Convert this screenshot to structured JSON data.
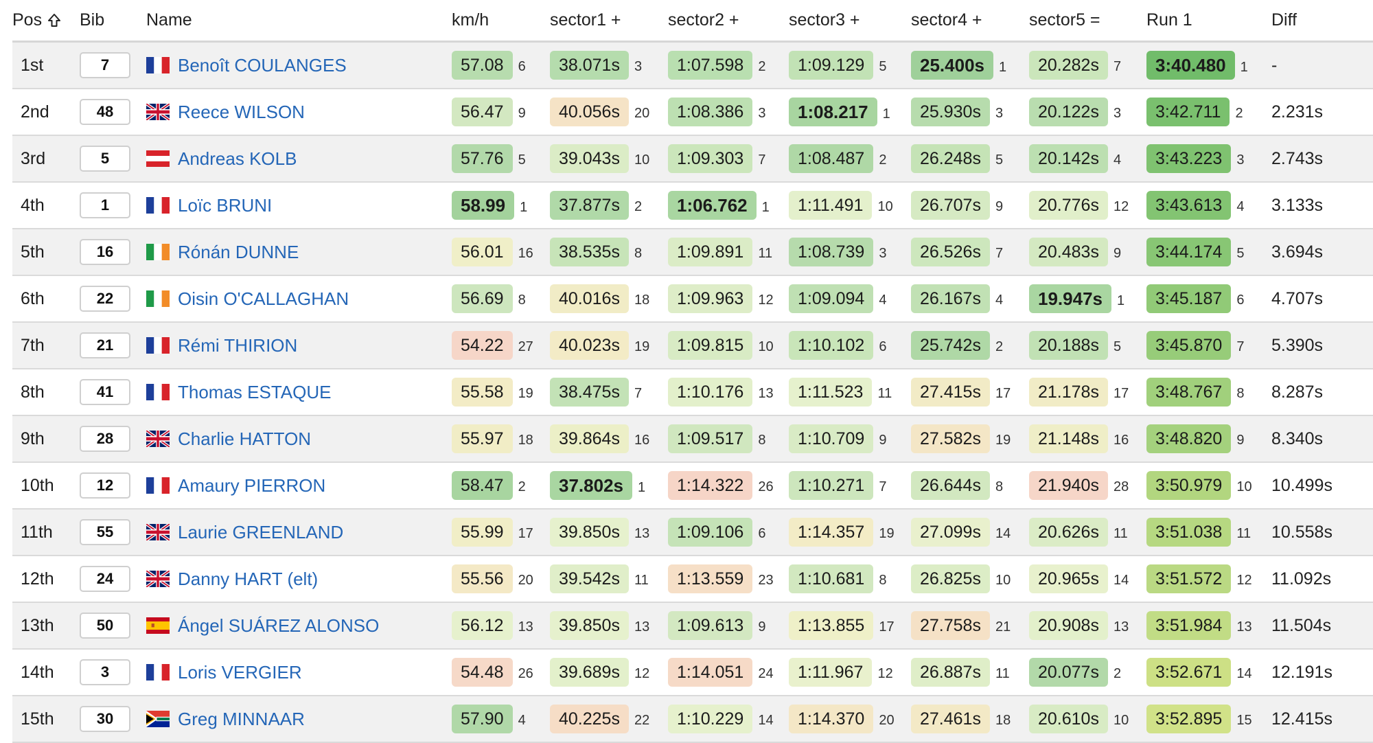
{
  "columns": {
    "pos": "Pos",
    "bib": "Bib",
    "name": "Name",
    "kmh": "km/h",
    "sector1": "sector1 +",
    "sector2": "sector2 +",
    "sector3": "sector3 +",
    "sector4": "sector4 +",
    "sector5": "sector5 =",
    "run1": "Run 1",
    "diff": "Diff"
  },
  "rows": [
    {
      "pos": "1st",
      "bib": "7",
      "flag": "fr",
      "name": "Benoît COULANGES",
      "kmh": {
        "v": "57.08",
        "r": "6",
        "c": "#b7dcae"
      },
      "s1": {
        "v": "38.071s",
        "r": "3",
        "c": "#b5dcad"
      },
      "s2": {
        "v": "1:07.598",
        "r": "2",
        "c": "#b9dfb0"
      },
      "s3": {
        "v": "1:09.129",
        "r": "5",
        "c": "#c2e2b5"
      },
      "s4": {
        "v": "25.400s",
        "r": "1",
        "c": "#9fd09a",
        "best": true
      },
      "s5": {
        "v": "20.282s",
        "r": "7",
        "c": "#cbe6bb"
      },
      "run": {
        "v": "3:40.480",
        "r": "1",
        "c": "#71bc6a",
        "best": true
      },
      "diff": "-"
    },
    {
      "pos": "2nd",
      "bib": "48",
      "flag": "gb",
      "name": "Reece WILSON",
      "kmh": {
        "v": "56.47",
        "r": "9",
        "c": "#d3e8c1"
      },
      "s1": {
        "v": "40.056s",
        "r": "20",
        "c": "#f5e3c6"
      },
      "s2": {
        "v": "1:08.386",
        "r": "3",
        "c": "#bde0b2"
      },
      "s3": {
        "v": "1:08.217",
        "r": "1",
        "c": "#a8d5a0",
        "best": true
      },
      "s4": {
        "v": "25.930s",
        "r": "3",
        "c": "#b7dcad"
      },
      "s5": {
        "v": "20.122s",
        "r": "3",
        "c": "#b9ddaf"
      },
      "run": {
        "v": "3:42.711",
        "r": "2",
        "c": "#7ac06e"
      },
      "diff": "2.231s"
    },
    {
      "pos": "3rd",
      "bib": "5",
      "flag": "at",
      "name": "Andreas KOLB",
      "kmh": {
        "v": "57.76",
        "r": "5",
        "c": "#b2d9aa"
      },
      "s1": {
        "v": "39.043s",
        "r": "10",
        "c": "#dbecc6"
      },
      "s2": {
        "v": "1:09.303",
        "r": "7",
        "c": "#cbe6bb"
      },
      "s3": {
        "v": "1:08.487",
        "r": "2",
        "c": "#afd8a6"
      },
      "s4": {
        "v": "26.248s",
        "r": "5",
        "c": "#c5e3b6"
      },
      "s5": {
        "v": "20.142s",
        "r": "4",
        "c": "#bcdfb1"
      },
      "run": {
        "v": "3:43.223",
        "r": "3",
        "c": "#7fc270"
      },
      "diff": "2.743s"
    },
    {
      "pos": "4th",
      "bib": "1",
      "flag": "fr",
      "name": "Loïc BRUNI",
      "kmh": {
        "v": "58.99",
        "r": "1",
        "c": "#a3d29c",
        "best": true
      },
      "s1": {
        "v": "37.877s",
        "r": "2",
        "c": "#b0d9a8"
      },
      "s2": {
        "v": "1:06.762",
        "r": "1",
        "c": "#a9d6a1",
        "best": true
      },
      "s3": {
        "v": "1:11.491",
        "r": "10",
        "c": "#e4f0cc"
      },
      "s4": {
        "v": "26.707s",
        "r": "9",
        "c": "#d6eac3"
      },
      "s5": {
        "v": "20.776s",
        "r": "12",
        "c": "#e1efca"
      },
      "run": {
        "v": "3:43.613",
        "r": "4",
        "c": "#83c472"
      },
      "diff": "3.133s"
    },
    {
      "pos": "5th",
      "bib": "16",
      "flag": "ie",
      "name": "Rónán DUNNE",
      "kmh": {
        "v": "56.01",
        "r": "16",
        "c": "#f0efc8"
      },
      "s1": {
        "v": "38.535s",
        "r": "8",
        "c": "#c7e4b8"
      },
      "s2": {
        "v": "1:09.891",
        "r": "11",
        "c": "#dbecc6"
      },
      "s3": {
        "v": "1:08.739",
        "r": "3",
        "c": "#b6dbac"
      },
      "s4": {
        "v": "26.526s",
        "r": "7",
        "c": "#cde7bd"
      },
      "s5": {
        "v": "20.483s",
        "r": "9",
        "c": "#d4e9c1"
      },
      "run": {
        "v": "3:44.174",
        "r": "5",
        "c": "#88c674"
      },
      "diff": "3.694s"
    },
    {
      "pos": "6th",
      "bib": "22",
      "flag": "ie",
      "name": "Oisin O'CALLAGHAN",
      "kmh": {
        "v": "56.69",
        "r": "8",
        "c": "#cde6be"
      },
      "s1": {
        "v": "40.016s",
        "r": "18",
        "c": "#f1ecc6"
      },
      "s2": {
        "v": "1:09.963",
        "r": "12",
        "c": "#deedc8"
      },
      "s3": {
        "v": "1:09.094",
        "r": "4",
        "c": "#bfe0b3"
      },
      "s4": {
        "v": "26.167s",
        "r": "4",
        "c": "#c1e1b4"
      },
      "s5": {
        "v": "19.947s",
        "r": "1",
        "c": "#a9d6a1",
        "best": true
      },
      "run": {
        "v": "3:45.187",
        "r": "6",
        "c": "#91ca77"
      },
      "diff": "4.707s"
    },
    {
      "pos": "7th",
      "bib": "21",
      "flag": "fr",
      "name": "Rémi THIRION",
      "kmh": {
        "v": "54.22",
        "r": "27",
        "c": "#f6d6c8"
      },
      "s1": {
        "v": "40.023s",
        "r": "19",
        "c": "#f3ebc6"
      },
      "s2": {
        "v": "1:09.815",
        "r": "10",
        "c": "#d8ebc4"
      },
      "s3": {
        "v": "1:10.102",
        "r": "6",
        "c": "#c9e5b9"
      },
      "s4": {
        "v": "25.742s",
        "r": "2",
        "c": "#afd8a6"
      },
      "s5": {
        "v": "20.188s",
        "r": "5",
        "c": "#c1e1b4"
      },
      "run": {
        "v": "3:45.870",
        "r": "7",
        "c": "#97cc79"
      },
      "diff": "5.390s"
    },
    {
      "pos": "8th",
      "bib": "41",
      "flag": "fr",
      "name": "Thomas ESTAQUE",
      "kmh": {
        "v": "55.58",
        "r": "19",
        "c": "#f3ecc6"
      },
      "s1": {
        "v": "38.475s",
        "r": "7",
        "c": "#c3e2b6"
      },
      "s2": {
        "v": "1:10.176",
        "r": "13",
        "c": "#e3f0cb"
      },
      "s3": {
        "v": "1:11.523",
        "r": "11",
        "c": "#e6f1cd"
      },
      "s4": {
        "v": "27.415s",
        "r": "17",
        "c": "#f2ebc6"
      },
      "s5": {
        "v": "21.178s",
        "r": "17",
        "c": "#f1ecc6"
      },
      "run": {
        "v": "3:48.767",
        "r": "8",
        "c": "#a1d07c"
      },
      "diff": "8.287s"
    },
    {
      "pos": "9th",
      "bib": "28",
      "flag": "gb",
      "name": "Charlie HATTON",
      "kmh": {
        "v": "55.97",
        "r": "18",
        "c": "#f1edc6"
      },
      "s1": {
        "v": "39.864s",
        "r": "16",
        "c": "#ecefc7"
      },
      "s2": {
        "v": "1:09.517",
        "r": "8",
        "c": "#d0e7bf"
      },
      "s3": {
        "v": "1:10.709",
        "r": "9",
        "c": "#d9ebc5"
      },
      "s4": {
        "v": "27.582s",
        "r": "19",
        "c": "#f4e6c6"
      },
      "s5": {
        "v": "21.148s",
        "r": "16",
        "c": "#efeec7"
      },
      "run": {
        "v": "3:48.820",
        "r": "9",
        "c": "#a4d17d"
      },
      "diff": "8.340s"
    },
    {
      "pos": "10th",
      "bib": "12",
      "flag": "fr",
      "name": "Amaury PIERRON",
      "kmh": {
        "v": "58.47",
        "r": "2",
        "c": "#a8d5a0"
      },
      "s1": {
        "v": "37.802s",
        "r": "1",
        "c": "#a9d6a1",
        "best": true
      },
      "s2": {
        "v": "1:14.322",
        "r": "26",
        "c": "#f6d5c7"
      },
      "s3": {
        "v": "1:10.271",
        "r": "7",
        "c": "#cde6bd"
      },
      "s4": {
        "v": "26.644s",
        "r": "8",
        "c": "#d2e8c0"
      },
      "s5": {
        "v": "21.940s",
        "r": "28",
        "c": "#f6d6c8"
      },
      "run": {
        "v": "3:50.979",
        "r": "10",
        "c": "#b2d67f"
      },
      "diff": "10.499s"
    },
    {
      "pos": "11th",
      "bib": "55",
      "flag": "gb",
      "name": "Laurie GREENLAND",
      "kmh": {
        "v": "55.99",
        "r": "17",
        "c": "#f1eec7"
      },
      "s1": {
        "v": "39.850s",
        "r": "13",
        "c": "#e6f1cd"
      },
      "s2": {
        "v": "1:09.106",
        "r": "6",
        "c": "#c5e3b7"
      },
      "s3": {
        "v": "1:14.357",
        "r": "19",
        "c": "#f3ecc6"
      },
      "s4": {
        "v": "27.099s",
        "r": "14",
        "c": "#e9f0cd"
      },
      "s5": {
        "v": "20.626s",
        "r": "11",
        "c": "#dbecc6"
      },
      "run": {
        "v": "3:51.038",
        "r": "11",
        "c": "#b6d881"
      },
      "diff": "10.558s"
    },
    {
      "pos": "12th",
      "bib": "24",
      "flag": "gb",
      "name": "Danny HART (elt)",
      "kmh": {
        "v": "55.56",
        "r": "20",
        "c": "#f4e9c6"
      },
      "s1": {
        "v": "39.542s",
        "r": "11",
        "c": "#e0eec9"
      },
      "s2": {
        "v": "1:13.559",
        "r": "23",
        "c": "#f6dfc7"
      },
      "s3": {
        "v": "1:10.681",
        "r": "8",
        "c": "#d2e8c0"
      },
      "s4": {
        "v": "26.825s",
        "r": "10",
        "c": "#dcedc6"
      },
      "s5": {
        "v": "20.965s",
        "r": "14",
        "c": "#e8f1cd"
      },
      "run": {
        "v": "3:51.572",
        "r": "12",
        "c": "#bad983"
      },
      "diff": "11.092s"
    },
    {
      "pos": "13th",
      "bib": "50",
      "flag": "es",
      "name": "Ángel SUÁREZ ALONSO",
      "kmh": {
        "v": "56.12",
        "r": "13",
        "c": "#e6f1cd"
      },
      "s1": {
        "v": "39.850s",
        "r": "13",
        "c": "#e6f1cd"
      },
      "s2": {
        "v": "1:09.613",
        "r": "9",
        "c": "#d3e8c1"
      },
      "s3": {
        "v": "1:13.855",
        "r": "17",
        "c": "#eff0c8"
      },
      "s4": {
        "v": "27.758s",
        "r": "21",
        "c": "#f5e1c6"
      },
      "s5": {
        "v": "20.908s",
        "r": "13",
        "c": "#e3f0cb"
      },
      "run": {
        "v": "3:51.984",
        "r": "13",
        "c": "#c1dc85"
      },
      "diff": "11.504s"
    },
    {
      "pos": "14th",
      "bib": "3",
      "flag": "fr",
      "name": "Loris VERGIER",
      "kmh": {
        "v": "54.48",
        "r": "26",
        "c": "#f6d9c8"
      },
      "s1": {
        "v": "39.689s",
        "r": "12",
        "c": "#e3f0cb"
      },
      "s2": {
        "v": "1:14.051",
        "r": "24",
        "c": "#f6dac7"
      },
      "s3": {
        "v": "1:11.967",
        "r": "12",
        "c": "#e9f1cd"
      },
      "s4": {
        "v": "26.887s",
        "r": "11",
        "c": "#dfeec8"
      },
      "s5": {
        "v": "20.077s",
        "r": "2",
        "c": "#b2d9a9"
      },
      "run": {
        "v": "3:52.671",
        "r": "14",
        "c": "#cde085"
      },
      "diff": "12.191s"
    },
    {
      "pos": "15th",
      "bib": "30",
      "flag": "za",
      "name": "Greg MINNAAR",
      "kmh": {
        "v": "57.90",
        "r": "4",
        "c": "#b0d8a8"
      },
      "s1": {
        "v": "40.225s",
        "r": "22",
        "c": "#f6ddc6"
      },
      "s2": {
        "v": "1:10.229",
        "r": "14",
        "c": "#e6f1cd"
      },
      "s3": {
        "v": "1:14.370",
        "r": "20",
        "c": "#f4e7c6"
      },
      "s4": {
        "v": "27.461s",
        "r": "18",
        "c": "#f3e9c6"
      },
      "s5": {
        "v": "20.610s",
        "r": "10",
        "c": "#d8ebc4"
      },
      "run": {
        "v": "3:52.895",
        "r": "15",
        "c": "#d1e288"
      },
      "diff": "12.415s"
    }
  ]
}
